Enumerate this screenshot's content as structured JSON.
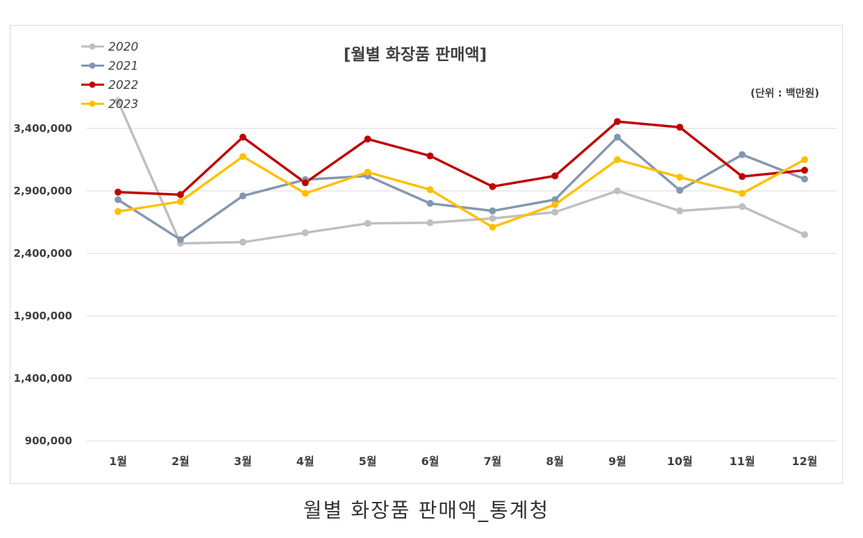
{
  "caption": "월별 화장품 판매액_통계청",
  "chart_data": {
    "type": "line",
    "title": "[월별 화장품 판매액]",
    "unit_note": "(단위 : 백만원)",
    "categories": [
      "1월",
      "2월",
      "3월",
      "4월",
      "5월",
      "6월",
      "7월",
      "8월",
      "9월",
      "10월",
      "11월",
      "12월"
    ],
    "y_ticks": [
      "900,000",
      "1,400,000",
      "1,900,000",
      "2,400,000",
      "2,900,000",
      "3,400,000"
    ],
    "ylim": [
      900000,
      3400000
    ],
    "grid": true,
    "legend_position": "top-left",
    "series": [
      {
        "name": "2020",
        "color": "#bfbfbf",
        "values": [
          3620000,
          2480000,
          2490000,
          2565000,
          2640000,
          2645000,
          2680000,
          2730000,
          2900000,
          2740000,
          2775000,
          2550000
        ]
      },
      {
        "name": "2021",
        "color": "#8497b0",
        "values": [
          2830000,
          2510000,
          2860000,
          2990000,
          3020000,
          2800000,
          2740000,
          2830000,
          3330000,
          2905000,
          3190000,
          2995000
        ]
      },
      {
        "name": "2022",
        "color": "#c00000",
        "values": [
          2890000,
          2870000,
          3330000,
          2965000,
          3315000,
          3180000,
          2935000,
          3020000,
          3455000,
          3410000,
          3015000,
          3065000
        ]
      },
      {
        "name": "2023",
        "color": "#ffc000",
        "values": [
          2735000,
          2815000,
          3175000,
          2880000,
          3050000,
          2910000,
          2610000,
          2790000,
          3150000,
          3010000,
          2880000,
          3150000
        ]
      }
    ]
  }
}
